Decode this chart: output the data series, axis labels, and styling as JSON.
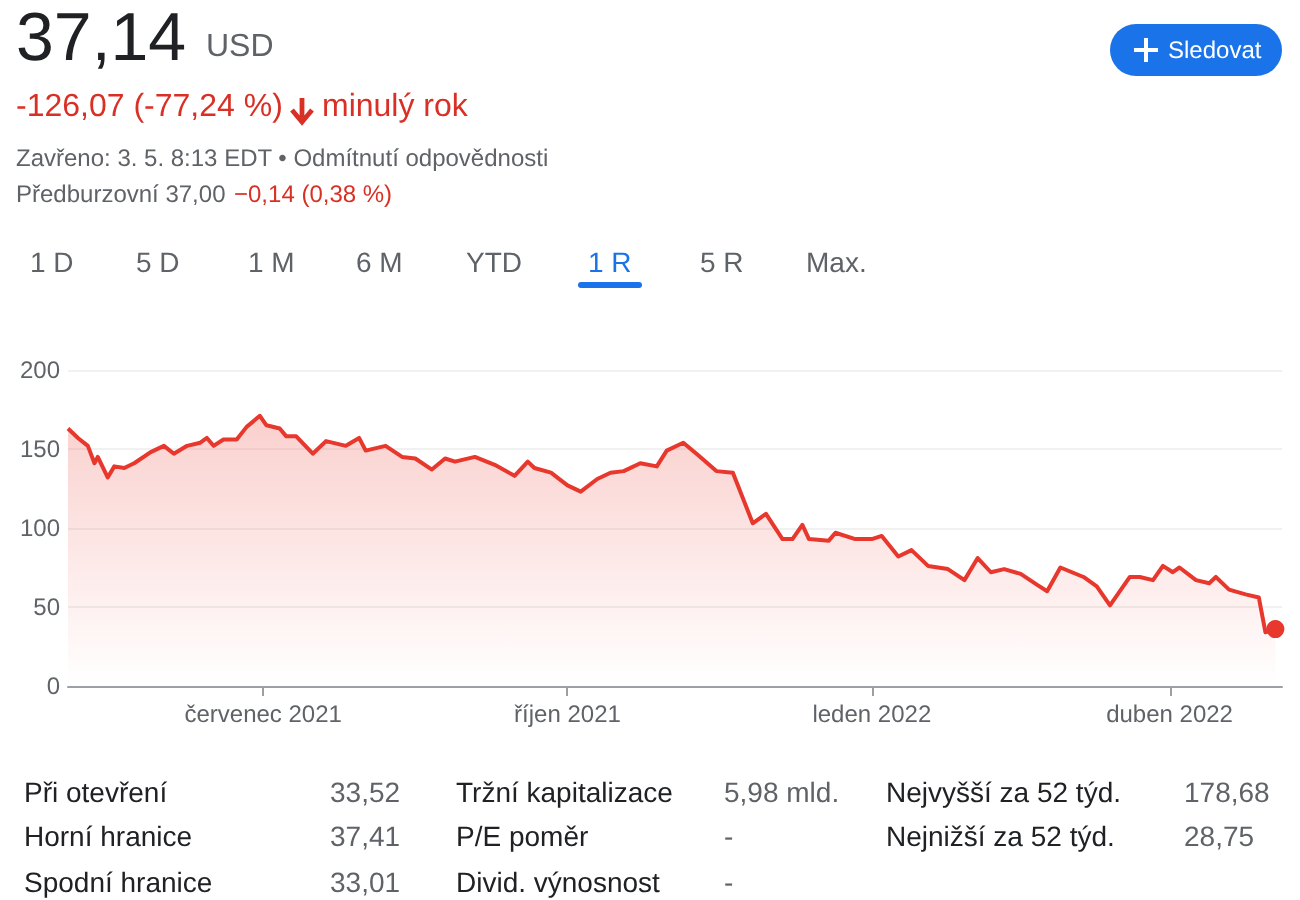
{
  "chart_data": {
    "type": "area",
    "title": "37,14",
    "subtitle": "-126,07 (-77,24 %)",
    "annotations": [
      "USD",
      "minulý rok",
      "Zavřeno: 3. 5. 8:13 EDT • Odmítnutí odpovědnosti",
      "Předburzovní 37,00",
      "−0,14 (0,38 %)",
      "Sledovat",
      "1 D",
      "5 D",
      "1 M",
      "6 M",
      "YTD",
      "1 R",
      "5 R",
      "Max.",
      "Při otevření",
      "33,52",
      "Tržní kapitalizace",
      "5,98 mld.",
      "Nejvyšší za 52 týd.",
      "178,68",
      "Horní hranice",
      "37,41",
      "P/E poměr",
      "-",
      "Nejnižší za 52 týd.",
      "28,75",
      "Spodní hranice",
      "33,01",
      "Divid. výnosnost",
      "-"
    ],
    "x": [
      "2021-05-03",
      "2021-05-06",
      "2021-05-09",
      "2021-05-11",
      "2021-05-12",
      "2021-05-15",
      "2021-05-17",
      "2021-05-20",
      "2021-05-23",
      "2021-05-28",
      "2021-06-01",
      "2021-06-04",
      "2021-06-08",
      "2021-06-12",
      "2021-06-14",
      "2021-06-16",
      "2021-06-19",
      "2021-06-23",
      "2021-06-26",
      "2021-06-30",
      "2021-07-02",
      "2021-07-06",
      "2021-07-08",
      "2021-07-11",
      "2021-07-16",
      "2021-07-20",
      "2021-07-26",
      "2021-07-30",
      "2021-08-01",
      "2021-08-07",
      "2021-08-12",
      "2021-08-16",
      "2021-08-21",
      "2021-08-25",
      "2021-08-28",
      "2021-09-03",
      "2021-09-09",
      "2021-09-15",
      "2021-09-19",
      "2021-09-21",
      "2021-09-26",
      "2021-10-01",
      "2021-10-05",
      "2021-10-10",
      "2021-10-14",
      "2021-10-18",
      "2021-10-23",
      "2021-10-28",
      "2021-10-31",
      "2021-11-05",
      "2021-11-09",
      "2021-11-15",
      "2021-11-20",
      "2021-11-26",
      "2021-11-30",
      "2021-12-05",
      "2021-12-08",
      "2021-12-11",
      "2021-12-13",
      "2021-12-19",
      "2021-12-21",
      "2021-12-27",
      "2022-01-01",
      "2022-01-04",
      "2022-01-09",
      "2022-01-13",
      "2022-01-18",
      "2022-01-24",
      "2022-01-29",
      "2022-02-02",
      "2022-02-06",
      "2022-02-10",
      "2022-02-15",
      "2022-02-20",
      "2022-02-23",
      "2022-02-27",
      "2022-03-06",
      "2022-03-10",
      "2022-03-14",
      "2022-03-20",
      "2022-03-23",
      "2022-03-27",
      "2022-03-30",
      "2022-04-02",
      "2022-04-04",
      "2022-04-09",
      "2022-04-13",
      "2022-04-15",
      "2022-04-19",
      "2022-04-24",
      "2022-04-28",
      "2022-04-30",
      "2022-05-03"
    ],
    "series": [
      {
        "color": "#e8372c",
        "values": [
          163,
          157,
          152,
          141,
          145,
          132,
          139,
          138,
          141,
          148,
          152,
          147,
          152,
          154,
          157,
          152,
          156,
          156,
          164,
          171,
          165,
          163,
          158,
          158,
          147,
          155,
          152,
          157,
          149,
          152,
          145,
          144,
          137,
          144,
          142,
          145,
          140,
          133,
          142,
          138,
          135,
          127,
          123,
          131,
          135,
          136,
          141,
          139,
          149,
          154,
          147,
          136,
          135,
          103,
          109,
          93,
          93,
          102,
          93,
          92,
          97,
          93,
          93,
          95,
          82,
          86,
          76,
          74,
          67,
          81,
          72,
          74,
          71,
          64,
          60,
          75,
          69,
          63,
          51,
          69,
          69,
          67,
          76,
          72,
          75,
          67,
          65,
          69,
          61,
          58,
          56,
          34,
          36
        ]
      }
    ],
    "xlim": [
      "2021-05-03",
      "2022-05-05"
    ],
    "xticks": [
      {
        "value": "2021-07-01",
        "label": "červenec 2021"
      },
      {
        "value": "2021-10-01",
        "label": "říjen 2021"
      },
      {
        "value": "2022-01-01",
        "label": "leden 2022"
      },
      {
        "value": "2022-04-01",
        "label": "duben 2022"
      }
    ],
    "ylim": [
      0,
      200
    ],
    "yticks": [
      0,
      50,
      100,
      150,
      200
    ],
    "grid": "y",
    "marker": "none",
    "line_style": "solid"
  }
}
